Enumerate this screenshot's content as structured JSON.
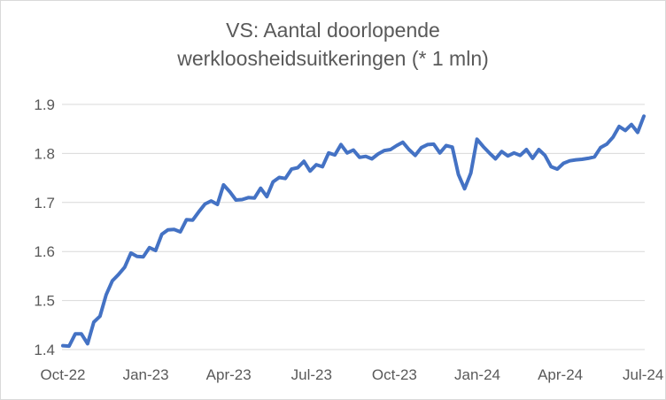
{
  "chart_data": {
    "type": "line",
    "title_line1": "VS: Aantal doorlopende",
    "title_line2": "werkloosheidsuitkeringen (* 1 mln)",
    "xlabel": "",
    "ylabel": "",
    "ylim": [
      1.4,
      1.9
    ],
    "yticks": [
      1.4,
      1.5,
      1.6,
      1.7,
      1.8,
      1.9
    ],
    "ytick_labels": [
      "1.4",
      "1.5",
      "1.6",
      "1.7",
      "1.8",
      "1.9"
    ],
    "xtick_labels": [
      "Oct-22",
      "Jan-23",
      "Apr-23",
      "Jul-23",
      "Oct-23",
      "Jan-24",
      "Apr-24",
      "Jul-24"
    ],
    "grid": "horizontal",
    "legend": "none",
    "color": "#4472c4",
    "series": [
      {
        "values": [
          1.408,
          1.407,
          1.432,
          1.432,
          1.412,
          1.456,
          1.468,
          1.512,
          1.54,
          1.553,
          1.568,
          1.597,
          1.59,
          1.589,
          1.608,
          1.602,
          1.635,
          1.644,
          1.645,
          1.64,
          1.665,
          1.664,
          1.681,
          1.697,
          1.703,
          1.696,
          1.736,
          1.722,
          1.705,
          1.706,
          1.71,
          1.709,
          1.729,
          1.712,
          1.742,
          1.751,
          1.749,
          1.768,
          1.771,
          1.784,
          1.764,
          1.777,
          1.773,
          1.801,
          1.797,
          1.818,
          1.801,
          1.807,
          1.792,
          1.794,
          1.789,
          1.799,
          1.806,
          1.808,
          1.816,
          1.823,
          1.808,
          1.796,
          1.812,
          1.818,
          1.819,
          1.801,
          1.816,
          1.813,
          1.757,
          1.728,
          1.76,
          1.829,
          1.814,
          1.801,
          1.789,
          1.804,
          1.795,
          1.801,
          1.796,
          1.808,
          1.79,
          1.808,
          1.796,
          1.773,
          1.768,
          1.78,
          1.785,
          1.787,
          1.788,
          1.79,
          1.793,
          1.812,
          1.819,
          1.833,
          1.855,
          1.847,
          1.859,
          1.843,
          1.876
        ]
      }
    ]
  }
}
